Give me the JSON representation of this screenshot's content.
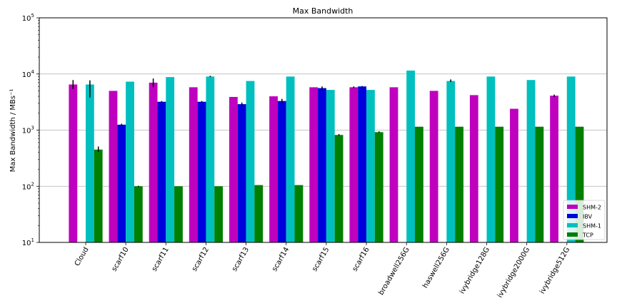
{
  "chart_data": {
    "type": "bar",
    "title": "Max Bandwidth",
    "ylabel": "Max Bandwidth / MBs⁻¹",
    "xlabel": "",
    "yscale": "log",
    "ylim": [
      10,
      100000
    ],
    "y_ticks": [
      {
        "value": 10,
        "base": "10",
        "exp": "1"
      },
      {
        "value": 100,
        "base": "10",
        "exp": "2"
      },
      {
        "value": 1000,
        "base": "10",
        "exp": "3"
      },
      {
        "value": 10000,
        "base": "10",
        "exp": "4"
      },
      {
        "value": 100000,
        "base": "10",
        "exp": "5"
      }
    ],
    "grid": "horizontal",
    "legend_position": "lower-right",
    "categories": [
      "Cloud",
      "scarf10",
      "scarf11",
      "scarf12",
      "scarf13",
      "scarf14",
      "scarf15",
      "scarf16",
      "broadwell256G",
      "haswell256G",
      "ivybridge128G",
      "ivybridge2000G",
      "ivybridge512G"
    ],
    "series": [
      {
        "name": "SHM-2",
        "color": "#bf00bf",
        "values": [
          6500,
          5000,
          7000,
          5800,
          3900,
          4000,
          5800,
          5800,
          5800,
          5000,
          4200,
          2400,
          4100
        ],
        "errors": [
          [
            5400,
            7800
          ],
          null,
          [
            5800,
            8300
          ],
          null,
          null,
          null,
          null,
          [
            5600,
            6000
          ],
          null,
          null,
          null,
          null,
          [
            3900,
            4300
          ]
        ]
      },
      {
        "name": "IBV",
        "color": "#0000dd",
        "values": [
          null,
          1250,
          3200,
          3200,
          2900,
          3300,
          5600,
          6000,
          null,
          null,
          null,
          null,
          null
        ],
        "errors": [
          null,
          [
            1200,
            1300
          ],
          [
            3100,
            3300
          ],
          [
            3100,
            3300
          ],
          [
            2700,
            3100
          ],
          [
            3100,
            3600
          ],
          [
            5200,
            6000
          ],
          [
            5900,
            6100
          ],
          null,
          null,
          null,
          null,
          null
        ]
      },
      {
        "name": "SHM-1",
        "color": "#00bfbf",
        "values": [
          6500,
          7300,
          8800,
          9000,
          7500,
          9000,
          5200,
          5200,
          11500,
          7500,
          9000,
          7800,
          9000
        ],
        "errors": [
          [
            3800,
            7700
          ],
          null,
          null,
          [
            8800,
            9300
          ],
          null,
          null,
          null,
          null,
          null,
          [
            7200,
            8000
          ],
          null,
          null,
          null
        ]
      },
      {
        "name": "TCP",
        "color": "#007f00",
        "values": [
          450,
          100,
          100,
          100,
          105,
          105,
          820,
          920,
          1150,
          1150,
          1150,
          1150,
          1150
        ],
        "errors": [
          [
            410,
            510
          ],
          [
            97,
            102
          ],
          null,
          null,
          null,
          null,
          [
            800,
            850
          ],
          [
            900,
            950
          ],
          null,
          null,
          null,
          null,
          null
        ]
      }
    ]
  }
}
